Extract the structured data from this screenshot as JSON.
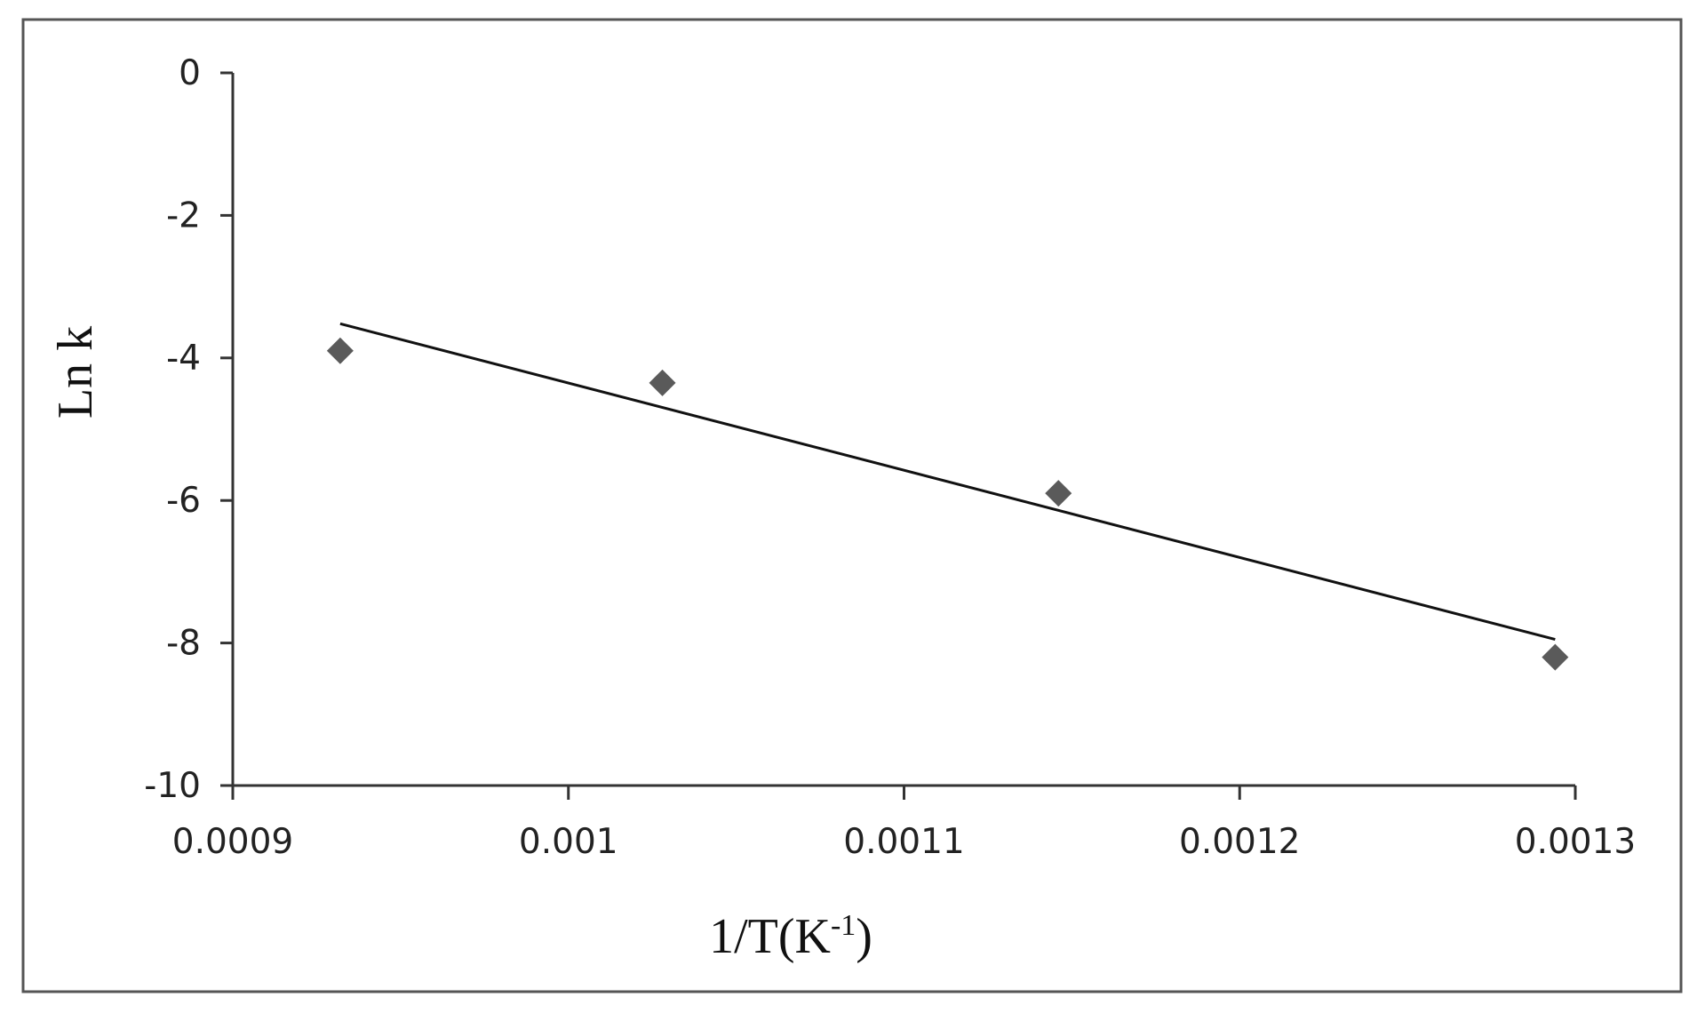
{
  "chart_data": {
    "type": "scatter",
    "title": "",
    "xlabel": "1/T(K",
    "xlabel_sup": "-1",
    "xlabel_close": ")",
    "ylabel": "Ln k",
    "xlim": [
      0.0009,
      0.0013
    ],
    "ylim": [
      -10,
      0
    ],
    "xticks": [
      "0.0009",
      "0.001",
      "0.0011",
      "0.0012",
      "0.0013"
    ],
    "xtick_values": [
      0.0009,
      0.001,
      0.0011,
      0.0012,
      0.0013
    ],
    "yticks": [
      "0",
      "-2",
      "-4",
      "-6",
      "-8",
      "-10"
    ],
    "ytick_values": [
      0,
      -2,
      -4,
      -6,
      -8,
      -10
    ],
    "grid": false,
    "legend": "none",
    "series": [
      {
        "x": [
          0.000932,
          0.001028,
          0.001146,
          0.001294
        ],
        "y": [
          -3.9,
          -4.35,
          -5.9,
          -8.2
        ],
        "color": "#5a5a5a",
        "marker": "diamond"
      }
    ],
    "trendline": {
      "type": "linear",
      "x": [
        0.000932,
        0.001294
      ],
      "y": [
        -3.52,
        -7.95
      ],
      "color": "#111111"
    }
  }
}
